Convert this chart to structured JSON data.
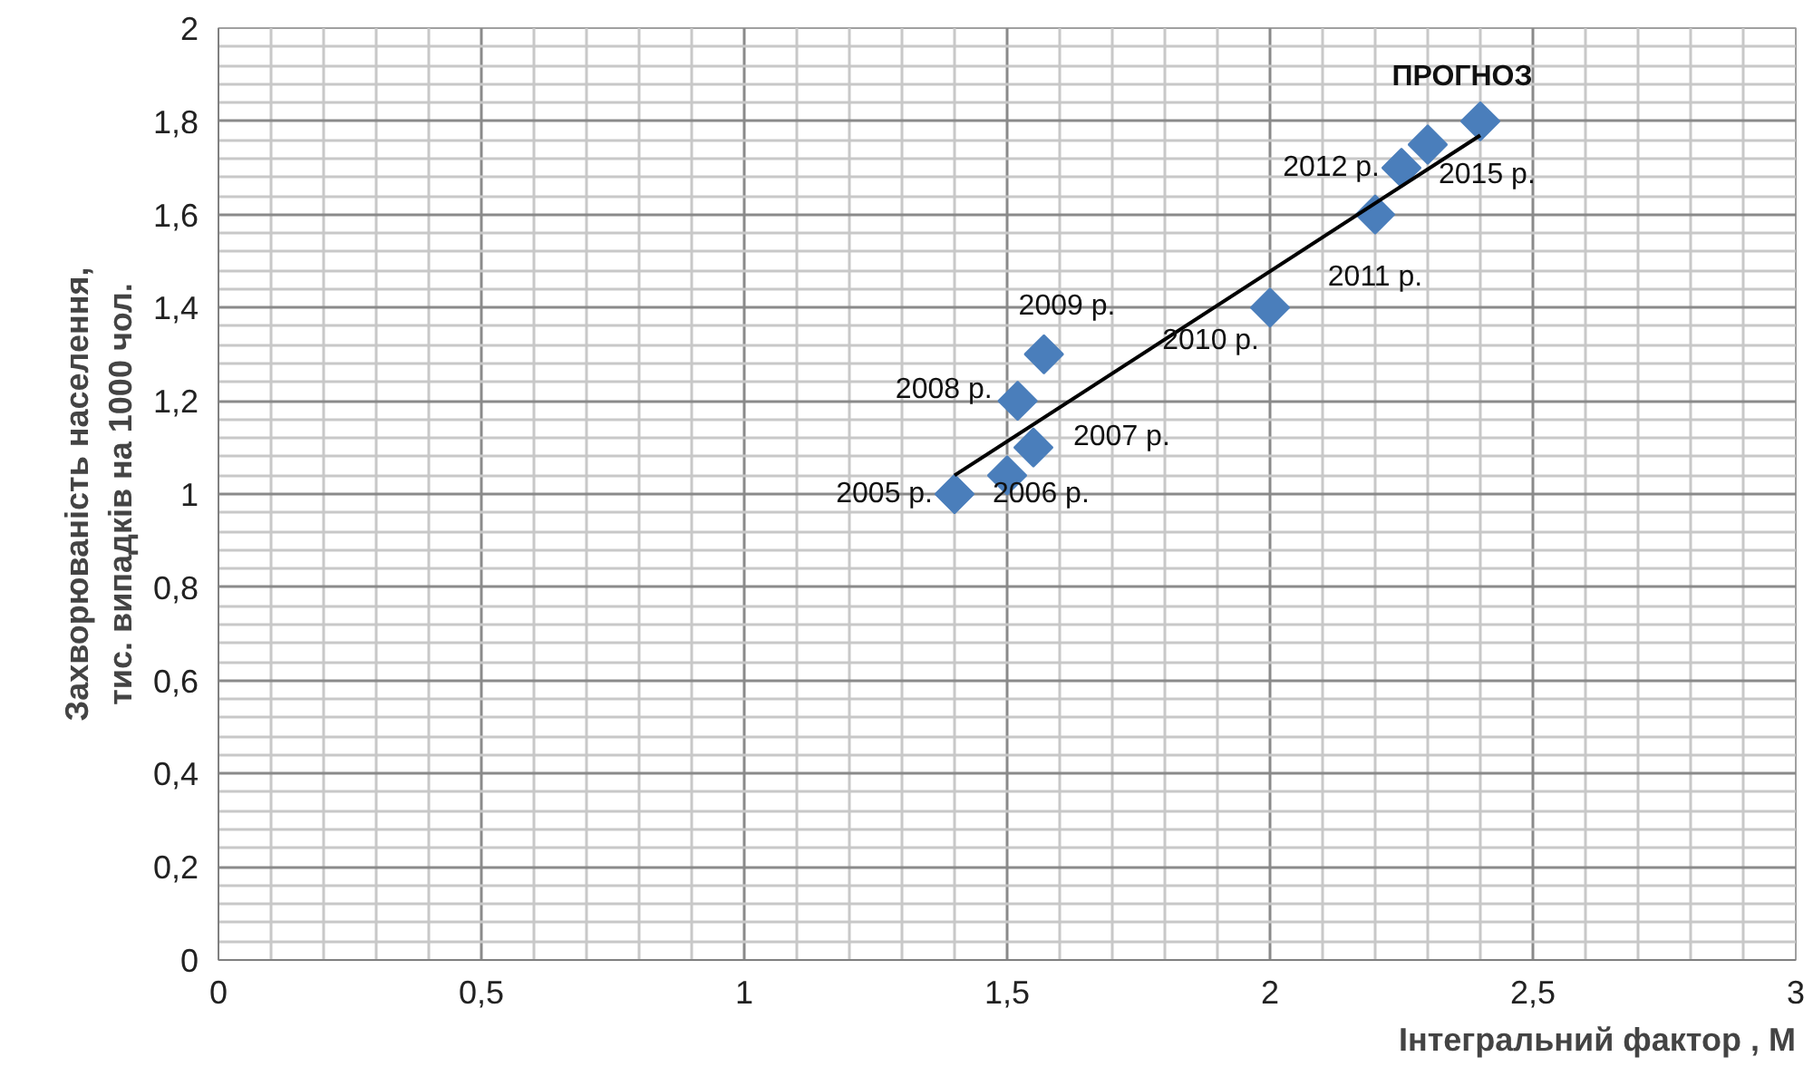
{
  "chart_data": {
    "type": "scatter",
    "xlabel": "Інтегральний фактор , М",
    "ylabel": "Захворюваність населення,\nтис. випадків на 1000 чол.",
    "xlim": [
      0,
      3
    ],
    "ylim": [
      0,
      2
    ],
    "xticks": [
      0,
      {
        "value": 0.5,
        "label": "0,5"
      },
      1,
      {
        "value": 1.5,
        "label": "1,5"
      },
      2,
      {
        "value": 2.5,
        "label": "2,5"
      },
      3
    ],
    "yticks": [
      0,
      {
        "value": 0.2,
        "label": "0,2"
      },
      {
        "value": 0.4,
        "label": "0,4"
      },
      {
        "value": 0.6,
        "label": "0,6"
      },
      {
        "value": 0.8,
        "label": "0,8"
      },
      1,
      {
        "value": 1.2,
        "label": "1,2"
      },
      {
        "value": 1.4,
        "label": "1,4"
      },
      {
        "value": 1.6,
        "label": "1,6"
      },
      {
        "value": 1.8,
        "label": "1,8"
      },
      2
    ],
    "grid": true,
    "series": [
      {
        "color": "#4a7ebb",
        "marker": "diamond",
        "x": [
          1.4,
          1.5,
          1.55,
          1.52,
          1.57,
          2.0,
          2.2,
          2.25,
          2.3,
          2.4
        ],
        "values": [
          1.0,
          1.04,
          1.1,
          1.2,
          1.3,
          1.4,
          1.6,
          1.7,
          1.75,
          1.8
        ]
      },
      {
        "type": "line",
        "marker": "none",
        "color": "#000000",
        "x": [
          1.4,
          2.4
        ],
        "values": [
          1.04,
          1.77
        ]
      }
    ],
    "annotations": [
      {
        "text": "2005 р.",
        "x": 1.4,
        "y": 1.0
      },
      {
        "text": "2006 р.",
        "x": 1.5,
        "y": 1.04
      },
      {
        "text": "2007 р.",
        "x": 1.55,
        "y": 1.1
      },
      {
        "text": "2008 р.",
        "x": 1.52,
        "y": 1.2
      },
      {
        "text": "2009 р.",
        "x": 1.57,
        "y": 1.3
      },
      {
        "text": "2010 р.",
        "x": 2.0,
        "y": 1.4
      },
      {
        "text": "2011 р.",
        "x": 2.2,
        "y": 1.6
      },
      {
        "text": "2012 р.",
        "x": 2.25,
        "y": 1.7
      },
      {
        "text": "2015 р.",
        "x": 2.3,
        "y": 1.75
      },
      {
        "text": "ПРОГНОЗ",
        "x": 2.4,
        "y": 1.8
      }
    ]
  }
}
